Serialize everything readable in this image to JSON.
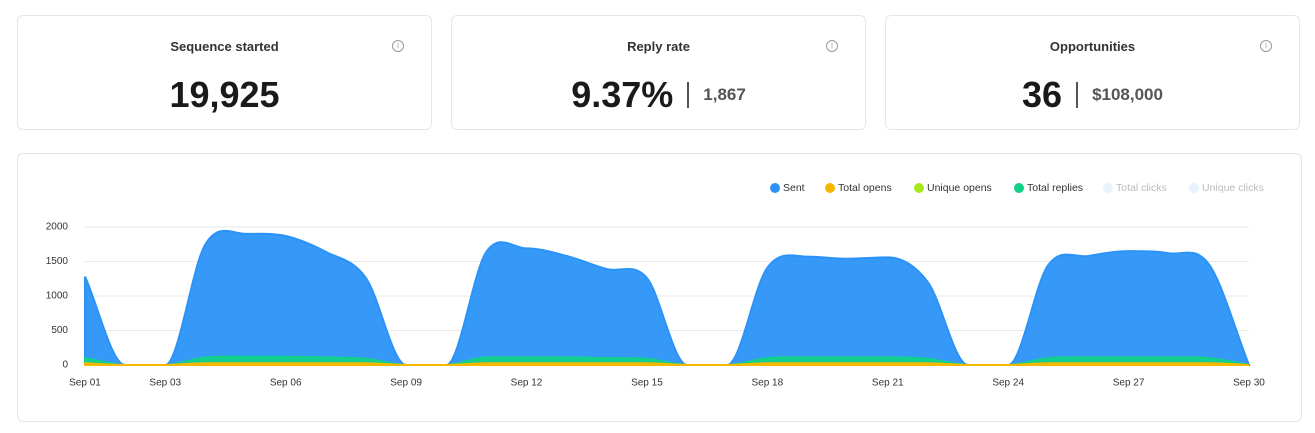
{
  "cards": [
    {
      "title": "Sequence started",
      "value": "19,925"
    },
    {
      "title": "Reply rate",
      "value": "9.37%",
      "secondary": "1,867"
    },
    {
      "title": "Opportunities",
      "value": "36",
      "secondary": "$108,000"
    }
  ],
  "chart_data": {
    "type": "area",
    "categories": [
      "Sep 01",
      null,
      "Sep 03",
      null,
      null,
      "Sep 06",
      null,
      null,
      "Sep 09",
      null,
      null,
      "Sep 12",
      null,
      null,
      "Sep 15",
      null,
      null,
      "Sep 18",
      null,
      null,
      "Sep 21",
      null,
      null,
      "Sep 24",
      null,
      null,
      "Sep 27",
      null,
      null,
      "Sep 30"
    ],
    "series": [
      {
        "name": "Sent",
        "color": "#2b93f8",
        "values": [
          1280,
          0,
          0,
          1750,
          1900,
          1870,
          1640,
          1260,
          0,
          0,
          1640,
          1690,
          1580,
          1390,
          1260,
          0,
          0,
          1410,
          1570,
          1540,
          1560,
          1200,
          0,
          0,
          1450,
          1580,
          1650,
          1620,
          1460,
          0
        ]
      },
      {
        "name": "Total opens",
        "color": "#f5b800",
        "values": [
          25,
          0,
          0,
          25,
          25,
          25,
          25,
          25,
          0,
          0,
          25,
          25,
          25,
          25,
          25,
          0,
          0,
          25,
          25,
          25,
          25,
          25,
          0,
          0,
          25,
          25,
          25,
          25,
          25,
          0
        ]
      },
      {
        "name": "Unique opens",
        "color": "#a6e81a",
        "values": [
          20,
          0,
          0,
          20,
          20,
          20,
          20,
          20,
          0,
          0,
          20,
          20,
          20,
          20,
          20,
          0,
          0,
          20,
          20,
          20,
          20,
          20,
          0,
          0,
          20,
          20,
          20,
          20,
          20,
          0
        ]
      },
      {
        "name": "Total replies",
        "color": "#11d18a",
        "values": [
          100,
          0,
          0,
          110,
          120,
          120,
          110,
          90,
          0,
          0,
          110,
          110,
          110,
          100,
          90,
          0,
          0,
          100,
          110,
          110,
          110,
          90,
          0,
          0,
          100,
          110,
          110,
          110,
          100,
          0
        ]
      },
      {
        "name": "Total clicks",
        "color": "#e8f3fb",
        "values": [
          0,
          0,
          0,
          0,
          0,
          0,
          0,
          0,
          0,
          0,
          0,
          0,
          0,
          0,
          0,
          0,
          0,
          0,
          0,
          0,
          0,
          0,
          0,
          0,
          0,
          0,
          0,
          0,
          0,
          0
        ]
      },
      {
        "name": "Unique clicks",
        "color": "#e8f3fb",
        "values": [
          0,
          0,
          0,
          0,
          0,
          0,
          0,
          0,
          0,
          0,
          0,
          0,
          0,
          0,
          0,
          0,
          0,
          0,
          0,
          0,
          0,
          0,
          0,
          0,
          0,
          0,
          0,
          0,
          0,
          0
        ]
      }
    ],
    "ylim": [
      0,
      2000
    ],
    "yticks": [
      0,
      500,
      1000,
      1500,
      2000
    ],
    "grid": true,
    "legend": "top-right"
  }
}
